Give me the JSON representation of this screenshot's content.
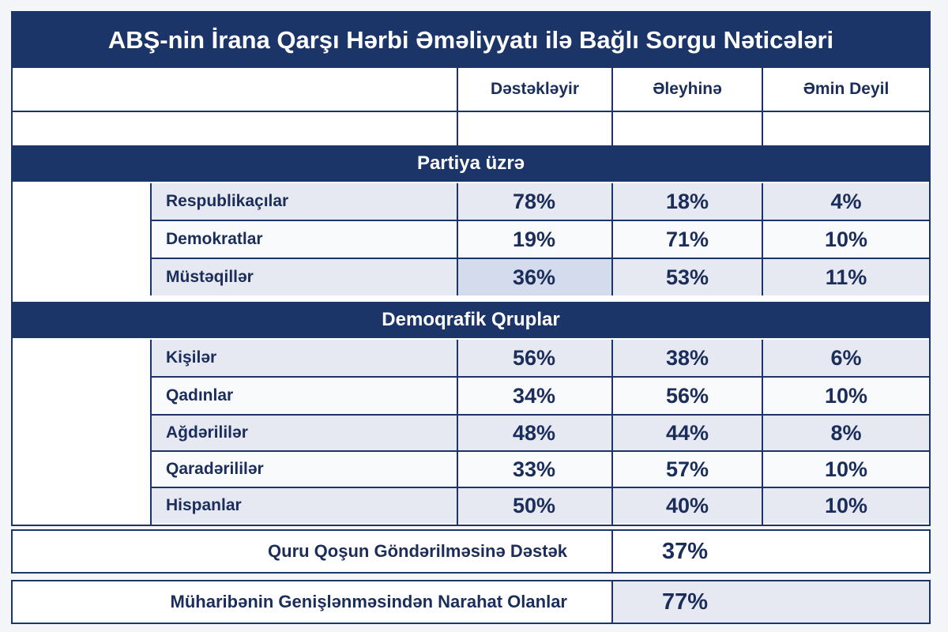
{
  "chart_data": {
    "type": "table",
    "title": "ABŞ-nin İrana Qarşı Hərbi Əməliyyatı ilə Bağlı Sorgu Nəticələri",
    "columns": [
      "Dəstəkləyir",
      "Əleyhinə",
      "Əmin Deyil"
    ],
    "sections": [
      {
        "title": "Partiya üzrə",
        "rows": [
          {
            "label": "Respublikaçılar",
            "values": [
              "78%",
              "18%",
              "4%"
            ]
          },
          {
            "label": "Demokratlar",
            "values": [
              "19%",
              "71%",
              "10%"
            ]
          },
          {
            "label": "Müstəqillər",
            "values": [
              "36%",
              "53%",
              "11%"
            ]
          }
        ]
      },
      {
        "title": "Demoqrafik Qruplar",
        "rows": [
          {
            "label": "Kişilər",
            "values": [
              "56%",
              "38%",
              "6%"
            ]
          },
          {
            "label": "Qadınlar",
            "values": [
              "34%",
              "56%",
              "10%"
            ]
          },
          {
            "label": "Ağdərililər",
            "values": [
              "48%",
              "44%",
              "8%"
            ]
          },
          {
            "label": "Qaradərililər",
            "values": [
              "33%",
              "57%",
              "10%"
            ]
          },
          {
            "label": "Hispanlar",
            "values": [
              "50%",
              "40%",
              "10%"
            ]
          }
        ]
      }
    ],
    "summary": [
      {
        "label": "Quru Qoşun Göndərilməsinə Dəstək",
        "value": "37%"
      },
      {
        "label": "Müharibənin Genişlənməsindən Narahat Olanlar",
        "value": "77%"
      }
    ]
  },
  "colors": {
    "navy": "#1c3568",
    "text": "#1b2d5a",
    "row_alt": "#e6e9f2",
    "row_plain": "#f9fafc",
    "highlight": "#d3dbec"
  }
}
